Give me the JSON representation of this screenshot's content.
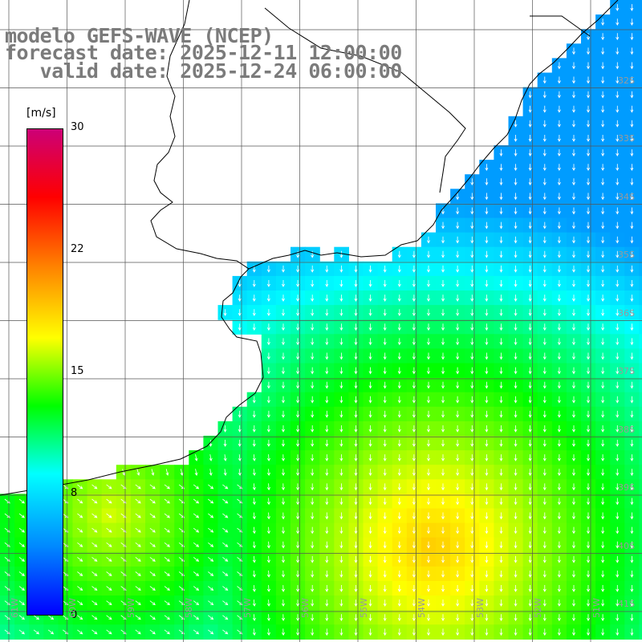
{
  "title": {
    "line1": "modelo GEFS-WAVE (NCEP)",
    "line2": "forecast date: 2025-12-11 12:00:00",
    "line3": "   valid date: 2025-12-24 06:00:00"
  },
  "colorbar": {
    "unit": "[m/s]",
    "ticks": [
      "30",
      "22",
      "15",
      "8",
      "0"
    ],
    "min": 0,
    "max": 30,
    "colors": [
      "#0000ff",
      "#0088ff",
      "#00ffff",
      "#00ff00",
      "#ffff00",
      "#ff8800",
      "#ff0000",
      "#cc0077"
    ]
  },
  "latitude_labels": [
    "32S",
    "33S",
    "34S",
    "35S",
    "36S",
    "37S",
    "38S",
    "39S",
    "40S",
    "41S"
  ],
  "longitude_labels": [
    "61W",
    "60W",
    "59W",
    "58W",
    "57W",
    "56W",
    "55W",
    "54W",
    "53W",
    "52W",
    "51W"
  ],
  "chart_data": {
    "type": "heatmap",
    "title": "",
    "variable": "wind speed",
    "unit": "m/s",
    "lon_range": [
      -61.5,
      -50
    ],
    "lat_range": [
      -41.5,
      -31
    ],
    "wind_direction": "mostly from north (arrows pointing south), veering from south-west in the far south-west",
    "max_speed_region": "around 53–54W, 40S",
    "approx_max_value": 19,
    "approx_min_value_open_sea": 6
  }
}
